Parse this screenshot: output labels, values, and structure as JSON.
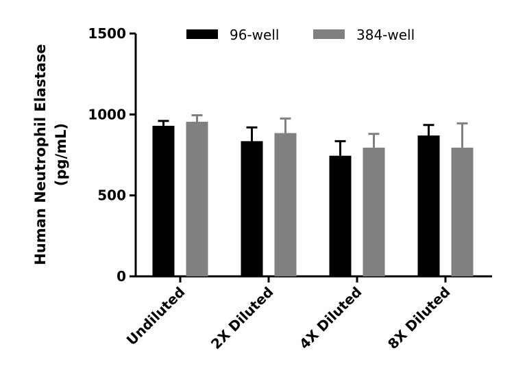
{
  "chart_data": {
    "type": "bar",
    "title": "",
    "xlabel": "",
    "ylabel": "Human Neutrophil Elastase (pg/mL)",
    "ylabel_lines": [
      "Human Neutrophil Elastase",
      "(pg/mL)"
    ],
    "ylim": [
      0,
      1500
    ],
    "yticks": [
      0,
      500,
      1000,
      1500
    ],
    "grid": false,
    "legend_position": "top",
    "categories": [
      "Undiluted",
      "2X Diluted",
      "4X Diluted",
      "8X Diluted"
    ],
    "series": [
      {
        "name": "96-well",
        "color": "#000000",
        "values": [
          930,
          835,
          745,
          870
        ],
        "error": [
          30,
          85,
          90,
          65
        ]
      },
      {
        "name": "384-well",
        "color": "#808080",
        "values": [
          955,
          885,
          795,
          795
        ],
        "error": [
          40,
          90,
          85,
          150
        ]
      }
    ]
  }
}
